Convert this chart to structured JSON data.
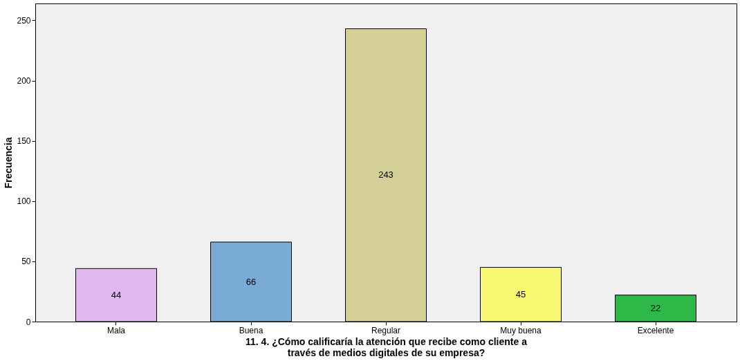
{
  "chart_data": {
    "type": "bar",
    "xlabel": "11. 4. ¿Cómo calificaría la atención que recibe como cliente a través de medios digitales de su empresa?",
    "ylabel": "Frecuencia",
    "categories": [
      "Mala",
      "Buena",
      "Regular",
      "Muy buena",
      "Excelente"
    ],
    "values": [
      44,
      66,
      243,
      45,
      22
    ],
    "colors": [
      "#dfb8ef",
      "#7aaad6",
      "#d4cf96",
      "#f7f771",
      "#2eb848"
    ],
    "ylim": [
      0,
      264
    ],
    "yticks": [
      0,
      50,
      100,
      150,
      200,
      250
    ],
    "grid": false,
    "data_labels": true
  }
}
